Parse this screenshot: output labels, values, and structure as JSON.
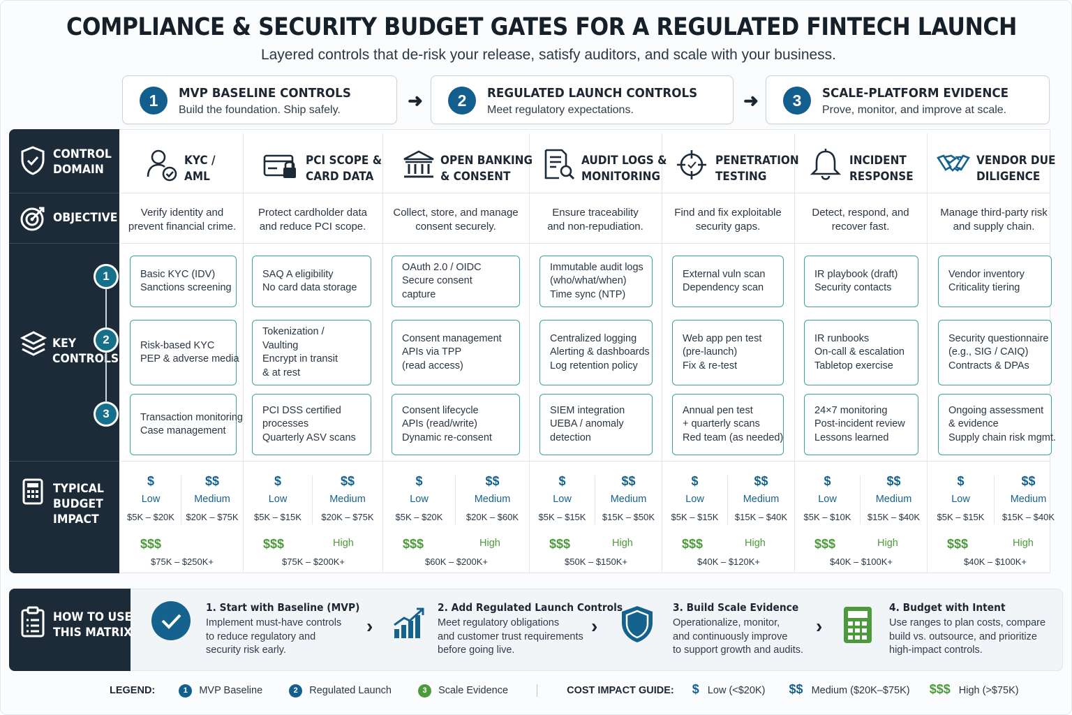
{
  "title": "COMPLIANCE & SECURITY BUDGET GATES FOR A REGULATED FINTECH LAUNCH",
  "subtitle": "Layered controls that de-risk your release, satisfy auditors, and scale with your business.",
  "phases": [
    {
      "num": "1",
      "title": "MVP BASELINE CONTROLS",
      "subtitle": "Build the foundation. Ship safely."
    },
    {
      "num": "2",
      "title": "REGULATED LAUNCH CONTROLS",
      "subtitle": "Meet regulatory expectations."
    },
    {
      "num": "3",
      "title": "SCALE-PLATFORM EVIDENCE",
      "subtitle": "Prove, monitor, and improve at scale."
    }
  ],
  "row_labels": {
    "control_domain": [
      "CONTROL",
      "DOMAIN"
    ],
    "objective": "OBJECTIVE",
    "key_controls": [
      "KEY",
      "CONTROLS"
    ],
    "budget": [
      "TYPICAL",
      "BUDGET",
      "IMPACT"
    ]
  },
  "step_numbers": [
    "1",
    "2",
    "3"
  ],
  "colors": {
    "navy": "#1d2b39",
    "blue": "#125f8e",
    "teal": "#3ba39b",
    "green": "#4c9a3b"
  },
  "domains": [
    {
      "icon": "identity-check-icon",
      "title": [
        "KYC /",
        "AML"
      ],
      "objective": [
        "Verify identity and",
        "prevent financial crime."
      ],
      "controls": [
        [
          "Basic KYC (IDV)",
          "Sanctions screening"
        ],
        [
          "Risk-based KYC",
          "PEP & adverse media"
        ],
        [
          "Transaction monitoring",
          "Case management"
        ]
      ],
      "budget": {
        "low_symbol": "$",
        "low_label": "Low",
        "low_range": "$5K – $20K",
        "med_symbol": "$$",
        "med_label": "Medium",
        "med_range": "$20K – $75K",
        "high_symbol": "$$$",
        "high_label": "",
        "high_range": "$75K – $250K+"
      }
    },
    {
      "icon": "card-lock-icon",
      "title": [
        "PCI SCOPE &",
        "CARD DATA"
      ],
      "objective": [
        "Protect cardholder data",
        "and reduce PCI scope."
      ],
      "controls": [
        [
          "SAQ A eligibility",
          "No card data storage"
        ],
        [
          "Tokenization /",
          "Vaulting",
          "Encrypt in transit",
          "& at rest"
        ],
        [
          "PCI DSS certified",
          "processes",
          "Quarterly ASV scans"
        ]
      ],
      "budget": {
        "low_symbol": "$",
        "low_label": "Low",
        "low_range": "$5K – $15K",
        "med_symbol": "$$",
        "med_label": "Medium",
        "med_range": "$20K – $75K",
        "high_symbol": "$$$",
        "high_label": "High",
        "high_range": "$75K – $200K+"
      }
    },
    {
      "icon": "bank-icon",
      "title": [
        "OPEN BANKING",
        "& CONSENT"
      ],
      "objective": [
        "Collect, store, and manage",
        "consent securely."
      ],
      "controls": [
        [
          "OAuth 2.0 / OIDC",
          "Secure consent",
          "capture"
        ],
        [
          "Consent management",
          "APIs via TPP",
          "(read access)"
        ],
        [
          "Consent lifecycle",
          "APIs (read/write)",
          "Dynamic re-consent"
        ]
      ],
      "budget": {
        "low_symbol": "$",
        "low_label": "Low",
        "low_range": "$5K – $20K",
        "med_symbol": "$$",
        "med_label": "Medium",
        "med_range": "$20K – $60K",
        "high_symbol": "$$$",
        "high_label": "High",
        "high_range": "$60K – $200K+"
      }
    },
    {
      "icon": "audit-log-search-icon",
      "title": [
        "AUDIT LOGS &",
        "MONITORING"
      ],
      "objective": [
        "Ensure traceability",
        "and non-repudiation."
      ],
      "controls": [
        [
          "Immutable audit logs",
          "(who/what/when)",
          "Time sync (NTP)"
        ],
        [
          "Centralized logging",
          "Alerting & dashboards",
          "Log retention policy"
        ],
        [
          "SIEM integration",
          "UEBA / anomaly",
          "detection"
        ]
      ],
      "budget": {
        "low_symbol": "$",
        "low_label": "Low",
        "low_range": "$5K – $15K",
        "med_symbol": "$$",
        "med_label": "Medium",
        "med_range": "$15K – $50K",
        "high_symbol": "$$$",
        "high_label": "High",
        "high_range": "$50K – $150K+"
      }
    },
    {
      "icon": "crosshair-icon",
      "title": [
        "PENETRATION",
        "TESTING"
      ],
      "objective": [
        "Find and fix exploitable",
        "security gaps."
      ],
      "controls": [
        [
          "External vuln scan",
          "Dependency scan"
        ],
        [
          "Web app pen test",
          "(pre-launch)",
          "Fix & re-test"
        ],
        [
          "Annual pen test",
          "+ quarterly scans",
          "Red team (as needed)"
        ]
      ],
      "budget": {
        "low_symbol": "$",
        "low_label": "Low",
        "low_range": "$5K – $15K",
        "med_symbol": "$$",
        "med_label": "Medium",
        "med_range": "$15K – $40K",
        "high_symbol": "$$$",
        "high_label": "High",
        "high_range": "$40K – $120K+"
      }
    },
    {
      "icon": "bell-icon",
      "title": [
        "INCIDENT",
        "RESPONSE"
      ],
      "objective": [
        "Detect, respond, and",
        "recover fast."
      ],
      "controls": [
        [
          "IR playbook (draft)",
          "Security contacts"
        ],
        [
          "IR runbooks",
          "On-call & escalation",
          "Tabletop exercise"
        ],
        [
          "24×7 monitoring",
          "Post-incident review",
          "Lessons learned"
        ]
      ],
      "budget": {
        "low_symbol": "$",
        "low_label": "Low",
        "low_range": "$5K – $10K",
        "med_symbol": "$$",
        "med_label": "Medium",
        "med_range": "$15K – $40K",
        "high_symbol": "$$$",
        "high_label": "High",
        "high_range": "$40K – $100K+"
      }
    },
    {
      "icon": "handshake-icon",
      "title": [
        "VENDOR DUE",
        "DILIGENCE"
      ],
      "objective": [
        "Manage third-party risk",
        "and supply chain."
      ],
      "controls": [
        [
          "Vendor inventory",
          "Criticality tiering"
        ],
        [
          "Security questionnaire",
          "(e.g., SIG / CAIQ)",
          "Contracts & DPAs"
        ],
        [
          "Ongoing assessment",
          "& evidence",
          "Supply chain risk mgmt."
        ]
      ],
      "budget": {
        "low_symbol": "$",
        "low_label": "Low",
        "low_range": "$5K – $15K",
        "med_symbol": "$$",
        "med_label": "Medium",
        "med_range": "$15K – $40K",
        "high_symbol": "$$$",
        "high_label": "High",
        "high_range": "$40K – $100K+"
      }
    }
  ],
  "how_to": {
    "label": [
      "HOW TO USE",
      "THIS MATRIX"
    ],
    "steps": [
      {
        "icon": "checkmark-circle-icon",
        "title": "1. Start with Baseline (MVP)",
        "body": [
          "Implement must-have controls",
          "to reduce regulatory and",
          "security risk early."
        ]
      },
      {
        "icon": "growth-chart-icon",
        "title": "2. Add Regulated Launch Controls",
        "body": [
          "Meet regulatory obligations",
          "and customer trust requirements",
          "before going live."
        ]
      },
      {
        "icon": "shield-icon",
        "title": "3. Build Scale Evidence",
        "body": [
          "Operationalize, monitor,",
          "and continuously improve",
          "to support growth and audits."
        ]
      },
      {
        "icon": "calculator-icon",
        "title": "4. Budget with Intent",
        "body": [
          "Use ranges to plan costs, compare",
          "build vs. outsource, and prioritize",
          "high-impact controls."
        ]
      }
    ]
  },
  "legend": {
    "label": "LEGEND:",
    "items": [
      {
        "num": "1",
        "text": "MVP Baseline"
      },
      {
        "num": "2",
        "text": "Regulated Launch"
      },
      {
        "num": "3",
        "text": "Scale Evidence"
      }
    ],
    "cost_label": "COST IMPACT GUIDE:",
    "costs": [
      {
        "symbol": "$",
        "text": "Low (<$20K)"
      },
      {
        "symbol": "$$",
        "text": "Medium ($20K–$75K)"
      },
      {
        "symbol": "$$$",
        "text": "High (>$75K)"
      }
    ]
  }
}
